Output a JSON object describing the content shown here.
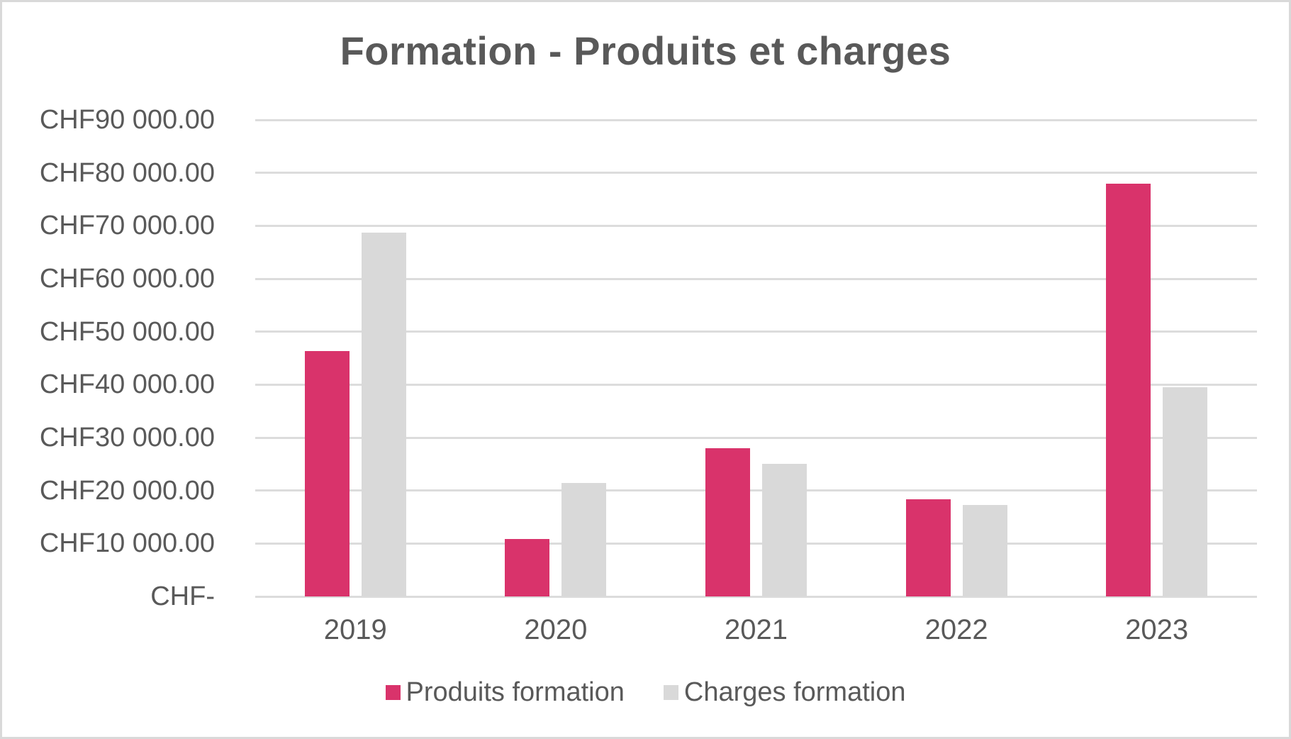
{
  "title": "Formation - Produits et charges",
  "colors": {
    "produits": "#d9336b",
    "charges": "#d9d9d9",
    "gridline": "#dcdcdc",
    "text": "#595959",
    "border": "#d9d9d9"
  },
  "y_axis": {
    "tick_labels": [
      "CHF90 000.00",
      "CHF80 000.00",
      "CHF70 000.00",
      "CHF60 000.00",
      "CHF50 000.00",
      "CHF40 000.00",
      "CHF30 000.00",
      "CHF20 000.00",
      "CHF10 000.00",
      "CHF-"
    ]
  },
  "legend": {
    "items": [
      {
        "key": "produits",
        "label": "Produits formation"
      },
      {
        "key": "charges",
        "label": "Charges formation"
      }
    ]
  },
  "chart_data": {
    "type": "bar",
    "title": "Formation - Produits et charges",
    "categories": [
      "2019",
      "2020",
      "2021",
      "2022",
      "2023"
    ],
    "series": [
      {
        "name": "Produits formation",
        "color_key": "produits",
        "values": [
          46400,
          10900,
          28000,
          18400,
          78000
        ]
      },
      {
        "name": "Charges formation",
        "color_key": "charges",
        "values": [
          68700,
          21400,
          25100,
          17300,
          39500
        ]
      }
    ],
    "xlabel": "",
    "ylabel": "",
    "ylim": [
      0,
      90000
    ],
    "y_tick_step": 10000,
    "currency": "CHF",
    "grid": true,
    "legend_position": "bottom"
  }
}
